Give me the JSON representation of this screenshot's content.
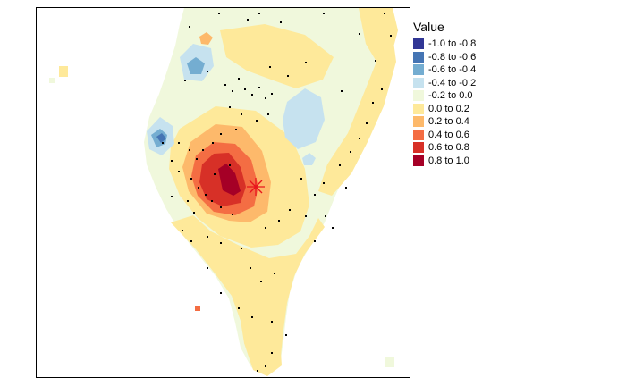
{
  "legend": {
    "title": "Value",
    "classes": [
      {
        "label": "-1.0 to -0.8",
        "color": "#313695"
      },
      {
        "label": "-0.8 to -0.6",
        "color": "#4575b4"
      },
      {
        "label": "-0.6 to -0.4",
        "color": "#74add1"
      },
      {
        "label": "-0.4 to -0.2",
        "color": "#c6e2ef"
      },
      {
        "label": "-0.2 to 0.0",
        "color": "#f0f8dc"
      },
      {
        "label": "0.0 to 0.2",
        "color": "#fee99a"
      },
      {
        "label": "0.2 to 0.4",
        "color": "#fdb96b"
      },
      {
        "label": "0.4 to 0.6",
        "color": "#f46d43"
      },
      {
        "label": "0.6 to 0.8",
        "color": "#d73027"
      },
      {
        "label": "0.8 to 1.0",
        "color": "#a50026"
      }
    ]
  },
  "markers": {
    "epicenter": "star-marker",
    "stations": "station-dot"
  }
}
